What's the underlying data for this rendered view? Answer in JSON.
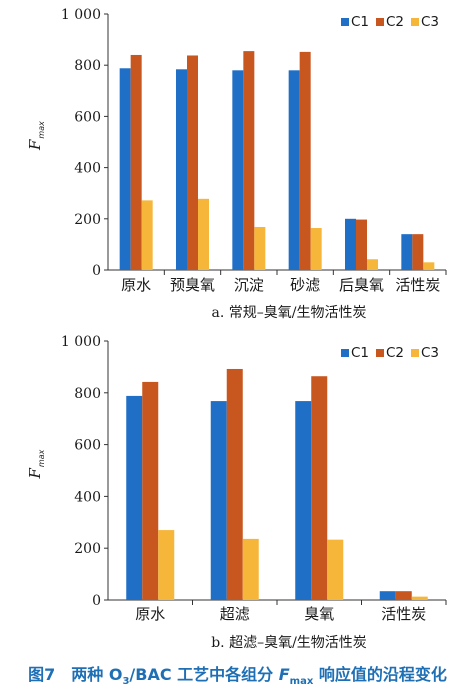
{
  "colors": {
    "C1": "#1f6fc6",
    "C2": "#c8561f",
    "C3": "#f5b63a",
    "axis": "#333333",
    "caption": "#1f6fb5"
  },
  "caption": {
    "prefix": "图7　两种 O",
    "sub1": "3",
    "mid": "/BAC 工艺中各组分 ",
    "fvar": "F",
    "fsub": "max",
    "suffix": " 响应值的沿程变化"
  },
  "chart_data": [
    {
      "type": "bar",
      "subtitle": "a. 常规–臭氧/生物活性炭",
      "ylabel": "F",
      "ylabel_sub": "max",
      "ylim": [
        0,
        1000
      ],
      "yticks": [
        0,
        200,
        400,
        600,
        800,
        1000
      ],
      "ytick_labels": [
        "0",
        "200",
        "400",
        "600",
        "800",
        "1 000"
      ],
      "grid": false,
      "legend_position": "top-right",
      "categories": [
        "原水",
        "预臭氧",
        "沉淀",
        "砂滤",
        "后臭氧",
        "活性炭"
      ],
      "series": [
        {
          "name": "C1",
          "values": [
            788,
            784,
            780,
            780,
            200,
            140
          ]
        },
        {
          "name": "C2",
          "values": [
            840,
            838,
            855,
            852,
            197,
            140
          ]
        },
        {
          "name": "C3",
          "values": [
            272,
            278,
            168,
            164,
            42,
            30
          ]
        }
      ]
    },
    {
      "type": "bar",
      "subtitle": "b. 超滤–臭氧/生物活性炭",
      "ylabel": "F",
      "ylabel_sub": "max",
      "ylim": [
        0,
        1000
      ],
      "yticks": [
        0,
        200,
        400,
        600,
        800,
        1000
      ],
      "ytick_labels": [
        "0",
        "200",
        "400",
        "600",
        "800",
        "1 000"
      ],
      "grid": false,
      "legend_position": "top-right",
      "categories": [
        "原水",
        "超滤",
        "臭氧",
        "活性炭"
      ],
      "series": [
        {
          "name": "C1",
          "values": [
            788,
            768,
            768,
            34
          ]
        },
        {
          "name": "C2",
          "values": [
            842,
            892,
            864,
            34
          ]
        },
        {
          "name": "C3",
          "values": [
            270,
            236,
            233,
            13
          ]
        }
      ]
    }
  ]
}
